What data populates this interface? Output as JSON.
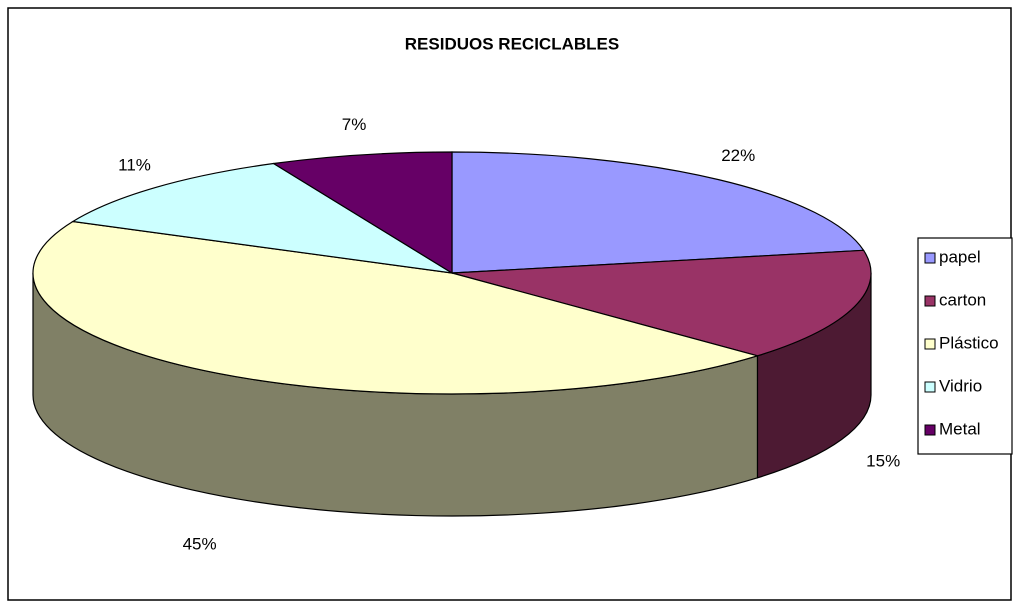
{
  "chart_data": {
    "type": "pie3d",
    "title": "RESIDUOS RECICLABLES",
    "categories": [
      "papel",
      "carton",
      "Plástico",
      "Vidrio",
      "Metal"
    ],
    "values": [
      22,
      15,
      45,
      11,
      7
    ],
    "value_labels": [
      "22%",
      "15%",
      "45%",
      "11%",
      "7%"
    ],
    "colors": [
      "#9999ff",
      "#993366",
      "#ffffcc",
      "#ccffff",
      "#660066"
    ],
    "legend": "right"
  }
}
